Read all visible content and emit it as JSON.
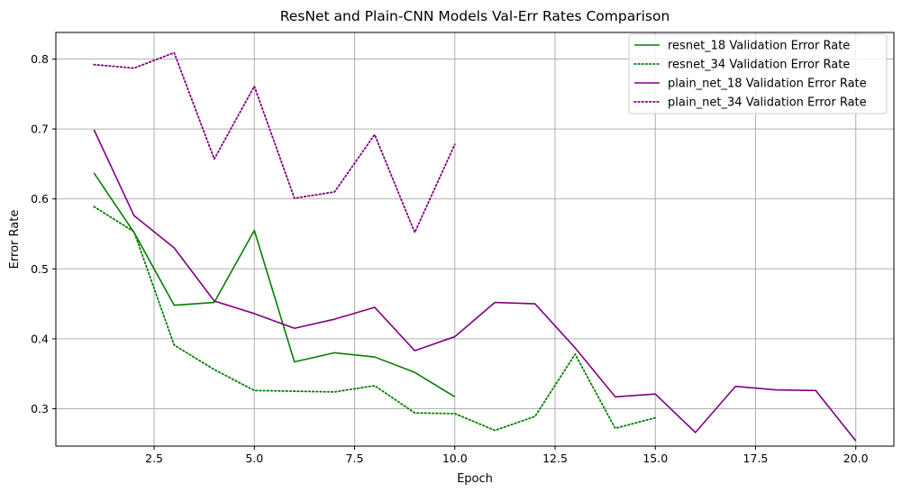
{
  "chart_data": {
    "type": "line",
    "title": "ResNet and Plain-CNN Models Val-Err Rates Comparison",
    "xlabel": "Epoch",
    "ylabel": "Error Rate",
    "xlim": [
      0.05,
      20.95
    ],
    "ylim": [
      0.2465,
      0.838
    ],
    "xticks": [
      2.5,
      5.0,
      7.5,
      10.0,
      12.5,
      15.0,
      17.5,
      20.0
    ],
    "xtick_labels": [
      "2.5",
      "5.0",
      "7.5",
      "10.0",
      "12.5",
      "15.0",
      "17.5",
      "20.0"
    ],
    "yticks": [
      0.3,
      0.4,
      0.5,
      0.6,
      0.7,
      0.8
    ],
    "ytick_labels": [
      "0.3",
      "0.4",
      "0.5",
      "0.6",
      "0.7",
      "0.8"
    ],
    "grid": true,
    "legend_position": "top-right",
    "series": [
      {
        "name": "resnet_18 Validation Error Rate",
        "color": "#008000",
        "style": "solid",
        "x": [
          1,
          2,
          3,
          4,
          5,
          6,
          7,
          8,
          9,
          10
        ],
        "y": [
          0.637,
          0.552,
          0.448,
          0.452,
          0.555,
          0.367,
          0.38,
          0.374,
          0.352,
          0.317
        ]
      },
      {
        "name": "resnet_34 Validation Error Rate",
        "color": "#008000",
        "style": "dotted",
        "x": [
          1,
          2,
          3,
          4,
          5,
          6,
          7,
          8,
          9,
          10,
          11,
          12,
          13,
          14,
          15
        ],
        "y": [
          0.589,
          0.553,
          0.391,
          0.356,
          0.326,
          0.325,
          0.324,
          0.333,
          0.294,
          0.293,
          0.269,
          0.289,
          0.378,
          0.272,
          0.287
        ]
      },
      {
        "name": "plain_net_18 Validation Error Rate",
        "color": "#800080",
        "style": "solid",
        "x": [
          1,
          2,
          3,
          4,
          5,
          6,
          7,
          8,
          9,
          10,
          11,
          12,
          13,
          14,
          15,
          16,
          17,
          18,
          19,
          20
        ],
        "y": [
          0.699,
          0.576,
          0.53,
          0.454,
          0.436,
          0.415,
          0.428,
          0.445,
          0.383,
          0.403,
          0.452,
          0.45,
          0.387,
          0.317,
          0.321,
          0.266,
          0.332,
          0.327,
          0.326,
          0.254
        ]
      },
      {
        "name": "plain_net_34 Validation Error Rate",
        "color": "#800080",
        "style": "dotted",
        "x": [
          1,
          2,
          3,
          4,
          5,
          6,
          7,
          8,
          9,
          10
        ],
        "y": [
          0.792,
          0.787,
          0.809,
          0.657,
          0.761,
          0.601,
          0.61,
          0.692,
          0.552,
          0.678
        ]
      }
    ]
  }
}
